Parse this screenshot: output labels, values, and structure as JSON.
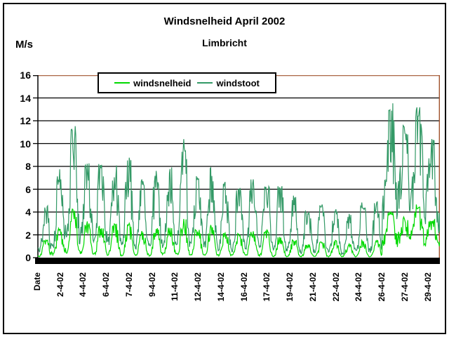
{
  "header": {
    "title": "Windsnelheid April 2002",
    "subtitle": "Limbricht",
    "y_unit_label": "M/s"
  },
  "chart_data": {
    "type": "line",
    "title": "Windsnelheid April 2002",
    "subtitle": "Limbricht",
    "ylabel": "M/s",
    "xlabel": "Date",
    "ylim": [
      0,
      16
    ],
    "y_ticks": [
      0,
      2,
      4,
      6,
      8,
      10,
      12,
      14,
      16
    ],
    "x_tick_labels": [
      "Date",
      "2-4-02",
      "4-4-02",
      "6-4-02",
      "7-4-02",
      "9-4-02",
      "11-4-02",
      "12-4-02",
      "14-4-02",
      "16-4-02",
      "17-4-02",
      "19-4-02",
      "21-4-02",
      "22-4-02",
      "24-4-02",
      "26-4-02",
      "27-4-02",
      "29-4-02"
    ],
    "x_tick_interval_hours": 40,
    "total_hours": 700,
    "resolution": "hourly",
    "grid": "horizontal",
    "legend_position": "top-inside",
    "axis_color": "#000000",
    "grid_color": "#000000",
    "plot_border_color": "#a0522d",
    "series": [
      {
        "name": "windsnelheid",
        "color": "#00d900",
        "daily_envelope": {
          "days": "1 April 2002 - 30 April 2002",
          "max": [
            1.6,
            2.6,
            4.3,
            3.2,
            2.9,
            3.0,
            3.1,
            2.3,
            2.6,
            2.6,
            3.4,
            2.6,
            2.9,
            2.2,
            2.1,
            2.3,
            2.4,
            1.9,
            1.6,
            1.2,
            1.4,
            1.5,
            1.2,
            1.5,
            1.5,
            4.1,
            3.6,
            4.6,
            3.5,
            2.5
          ],
          "min": [
            0.1,
            0.3,
            0.5,
            0.4,
            0.3,
            0.3,
            0.2,
            0.2,
            0.2,
            0.3,
            0.3,
            0.2,
            0.2,
            0.2,
            0.2,
            0.2,
            0.2,
            0.1,
            0.1,
            0.1,
            0.1,
            0.1,
            0.1,
            0.1,
            0.1,
            0.8,
            1.0,
            1.2,
            0.8,
            0.6
          ]
        }
      },
      {
        "name": "windstoot",
        "color": "#339966",
        "daily_envelope": {
          "days": "1 April 2002 - 30 April 2002",
          "max": [
            4.5,
            8.0,
            12.1,
            8.4,
            8.6,
            8.0,
            8.8,
            7.0,
            7.6,
            8.0,
            10.2,
            7.4,
            7.8,
            6.6,
            6.2,
            7.0,
            6.4,
            6.6,
            5.4,
            4.2,
            4.6,
            4.4,
            3.8,
            4.8,
            5.0,
            13.4,
            11.5,
            13.0,
            10.5,
            7.5
          ],
          "min": [
            0.6,
            1.2,
            2.0,
            1.8,
            1.5,
            1.5,
            1.2,
            1.0,
            1.0,
            1.2,
            1.5,
            1.2,
            1.0,
            0.8,
            0.8,
            1.0,
            1.0,
            0.8,
            0.6,
            0.5,
            0.5,
            0.5,
            0.4,
            0.5,
            0.6,
            2.5,
            3.0,
            3.0,
            2.5,
            2.0
          ]
        }
      }
    ],
    "notable_peaks": [
      {
        "date": "3-4-02",
        "series": "windstoot",
        "value": 12.1
      },
      {
        "date": "11-4-02",
        "series": "windstoot",
        "value": 10.2
      },
      {
        "date": "26-4-02",
        "series": "windstoot",
        "value": 13.4
      },
      {
        "date": "28-4-02",
        "series": "windstoot",
        "value": 13.0
      },
      {
        "date": "3-4-02",
        "series": "windsnelheid",
        "value": 4.3
      },
      {
        "date": "28-4-02",
        "series": "windsnelheid",
        "value": 4.6
      }
    ]
  }
}
